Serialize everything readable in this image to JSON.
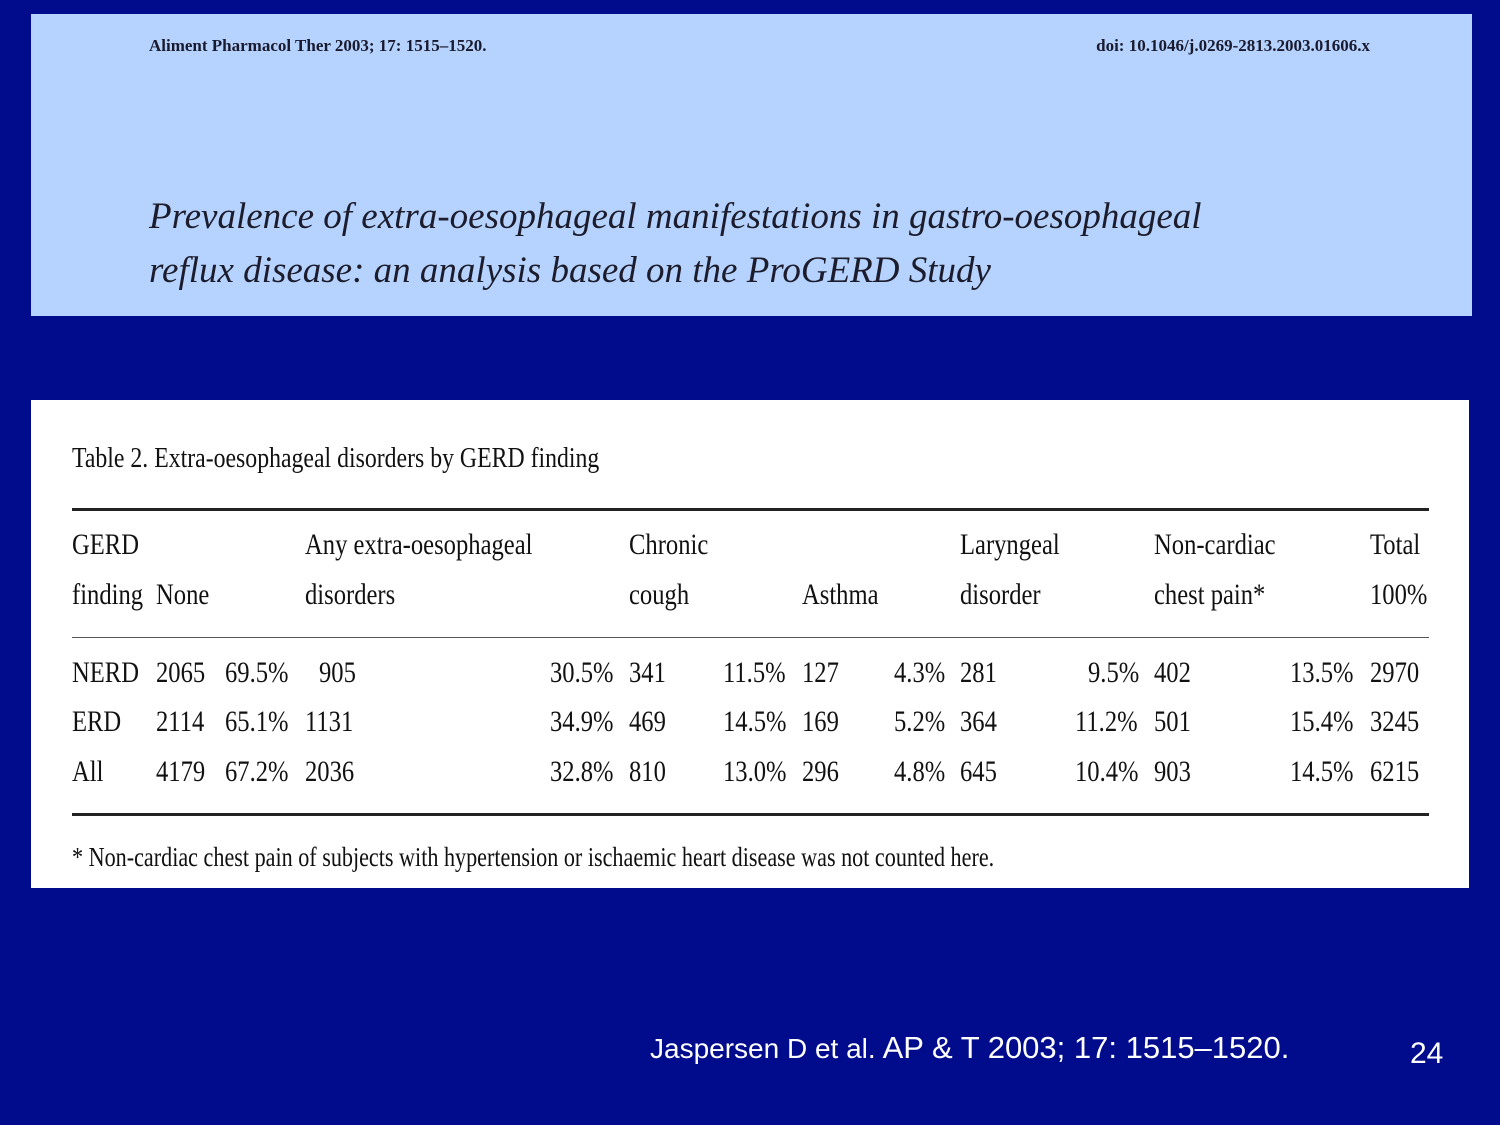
{
  "header": {
    "journal_ref": "Aliment Pharmacol Ther 2003; 17: 1515–1520.",
    "doi": "doi: 10.1046/j.0269-2813.2003.01606.x",
    "title_line1": "Prevalence of extra-oesophageal manifestations in gastro-oesophageal",
    "title_line2": "reflux disease: an analysis based on the ProGERD Study"
  },
  "table": {
    "caption": "Table 2. Extra-oesophageal disorders by GERD finding",
    "headers": {
      "gerd_1": "GERD",
      "gerd_2": "finding",
      "none": "None",
      "any_1": "Any extra-oesophageal",
      "any_2": "disorders",
      "cough_1": "Chronic",
      "cough_2": "cough",
      "asthma": "Asthma",
      "laryn_1": "Laryngeal",
      "laryn_2": "disorder",
      "chest_1": "Non-cardiac",
      "chest_2": "chest pain*",
      "total_1": "Total",
      "total_2": "100%"
    },
    "rows": [
      {
        "finding": "NERD",
        "none_n": "2065",
        "none_pct": "69.5%",
        "any_n": "905",
        "any_pct": "30.5%",
        "cough_n": "341",
        "cough_pct": "11.5%",
        "asthma_n": "127",
        "asthma_pct": "4.3%",
        "laryn_n": "281",
        "laryn_pct": "9.5%",
        "chest_n": "402",
        "chest_pct": "13.5%",
        "total": "2970"
      },
      {
        "finding": "ERD",
        "none_n": "2114",
        "none_pct": "65.1%",
        "any_n": "1131",
        "any_pct": "34.9%",
        "cough_n": "469",
        "cough_pct": "14.5%",
        "asthma_n": "169",
        "asthma_pct": "5.2%",
        "laryn_n": "364",
        "laryn_pct": "11.2%",
        "chest_n": "501",
        "chest_pct": "15.4%",
        "total": "3245"
      },
      {
        "finding": "All",
        "none_n": "4179",
        "none_pct": "67.2%",
        "any_n": "2036",
        "any_pct": "32.8%",
        "cough_n": "810",
        "cough_pct": "13.0%",
        "asthma_n": "296",
        "asthma_pct": "4.8%",
        "laryn_n": "645",
        "laryn_pct": "10.4%",
        "chest_n": "903",
        "chest_pct": "14.5%",
        "total": "6215"
      }
    ],
    "footnote": "* Non-cardiac chest pain of subjects with hypertension or ischaemic heart disease was not counted here."
  },
  "citation": {
    "part1": "Jaspersen D et al.",
    "part2": " AP & T 2003; 17: 1515–1520."
  },
  "page_number": "24"
}
